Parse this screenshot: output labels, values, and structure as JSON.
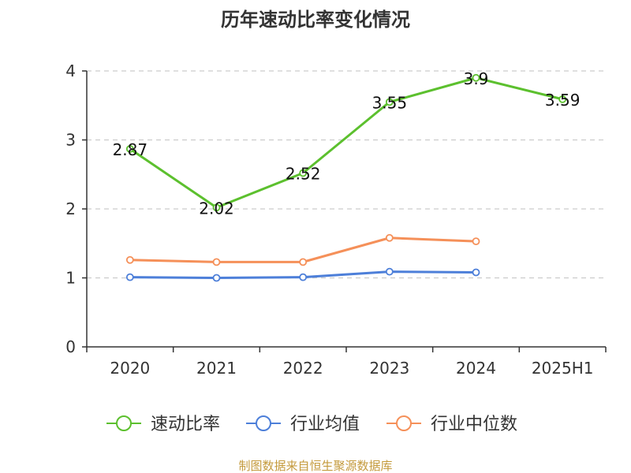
{
  "chart_data": {
    "type": "line",
    "title": "历年速动比率变化情况",
    "categories": [
      "2020",
      "2021",
      "2022",
      "2023",
      "2024",
      "2025H1"
    ],
    "ylim": [
      0,
      4
    ],
    "yticks": [
      0,
      1,
      2,
      3,
      4
    ],
    "grid": true,
    "legend_position": "bottom",
    "series": [
      {
        "name": "速动比率",
        "color": "#5cc02e",
        "values": [
          2.87,
          2.02,
          2.52,
          3.55,
          3.9,
          3.59
        ],
        "labels": [
          "2.87",
          "2.02",
          "2.52",
          "3.55",
          "3.9",
          "3.59"
        ],
        "show_labels": true
      },
      {
        "name": "行业均值",
        "color": "#4d7fd9",
        "values": [
          1.01,
          1.0,
          1.01,
          1.09,
          1.08,
          null
        ],
        "show_labels": false
      },
      {
        "name": "行业中位数",
        "color": "#f59059",
        "values": [
          1.26,
          1.23,
          1.23,
          1.58,
          1.53,
          null
        ],
        "show_labels": false
      }
    ]
  },
  "source": "制图数据来自恒生聚源数据库"
}
